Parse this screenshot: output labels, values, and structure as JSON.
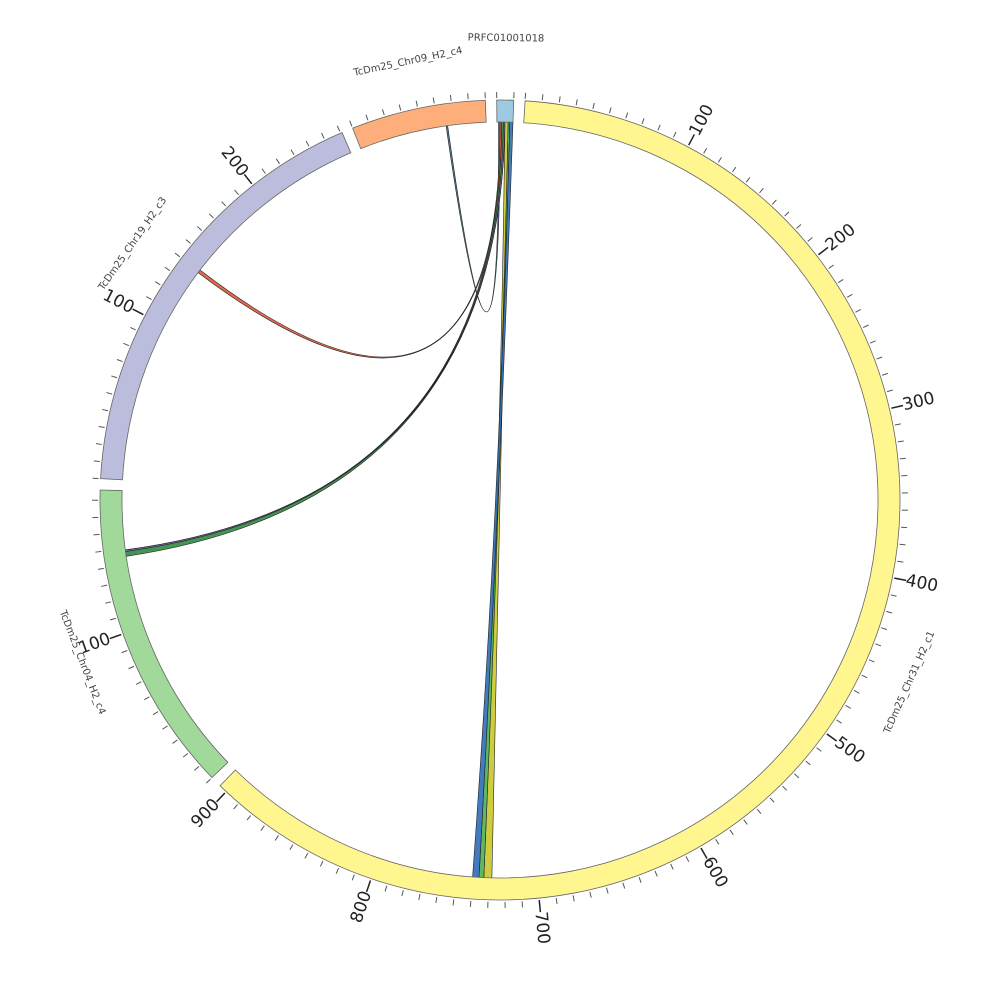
{
  "chart_data": {
    "type": "circos",
    "minor_tick_interval": 10,
    "chromosomes": [
      {
        "name": "TcDm25_Chr31_H2_c1",
        "length": 905,
        "color": "#fff68f",
        "ticks": [
          100,
          200,
          300,
          400,
          500,
          600,
          700,
          800,
          900
        ]
      },
      {
        "name": "TcDm25_Chr04_H2_c4",
        "length": 186,
        "color": "#a1d99b",
        "ticks": [
          100
        ]
      },
      {
        "name": "TcDm25_Chr19_H2_c3",
        "length": 261,
        "color": "#bcbddc",
        "ticks": [
          100,
          200
        ]
      },
      {
        "name": "TcDm25_Chr09_H2_c4",
        "length": 80,
        "color": "#fdae7b",
        "ticks": []
      },
      {
        "name": "PRFC01001018",
        "length": 10,
        "color": "#9ecae1",
        "ticks": []
      }
    ],
    "links": [
      {
        "source": 4,
        "source_start": 1,
        "source_end": 2,
        "target": 3,
        "target_start": 55,
        "target_end": 56,
        "color": "#3a7088"
      },
      {
        "source": 4,
        "source_start": 2,
        "source_end": 3,
        "target": 2,
        "target_start": 139,
        "target_end": 141,
        "color": "#e0593a"
      },
      {
        "source": 4,
        "source_start": 3,
        "source_end": 5,
        "target": 1,
        "target_start": 145,
        "target_end": 149,
        "color": "#2e8b3e"
      },
      {
        "source": 4,
        "source_start": 4,
        "source_end": 5,
        "target": 1,
        "target_start": 148,
        "target_end": 149,
        "color": "#7b5ea7"
      },
      {
        "source": 4,
        "source_start": 5,
        "source_end": 7,
        "target": 0,
        "target_start": 728,
        "target_end": 733,
        "color": "#c9c72a"
      },
      {
        "source": 4,
        "source_start": 7,
        "source_end": 8,
        "target": 0,
        "target_start": 733,
        "target_end": 736,
        "color": "#4caf50"
      },
      {
        "source": 4,
        "source_start": 8,
        "source_end": 10,
        "target": 0,
        "target_start": 736,
        "target_end": 740,
        "color": "#2f6db5"
      }
    ]
  }
}
